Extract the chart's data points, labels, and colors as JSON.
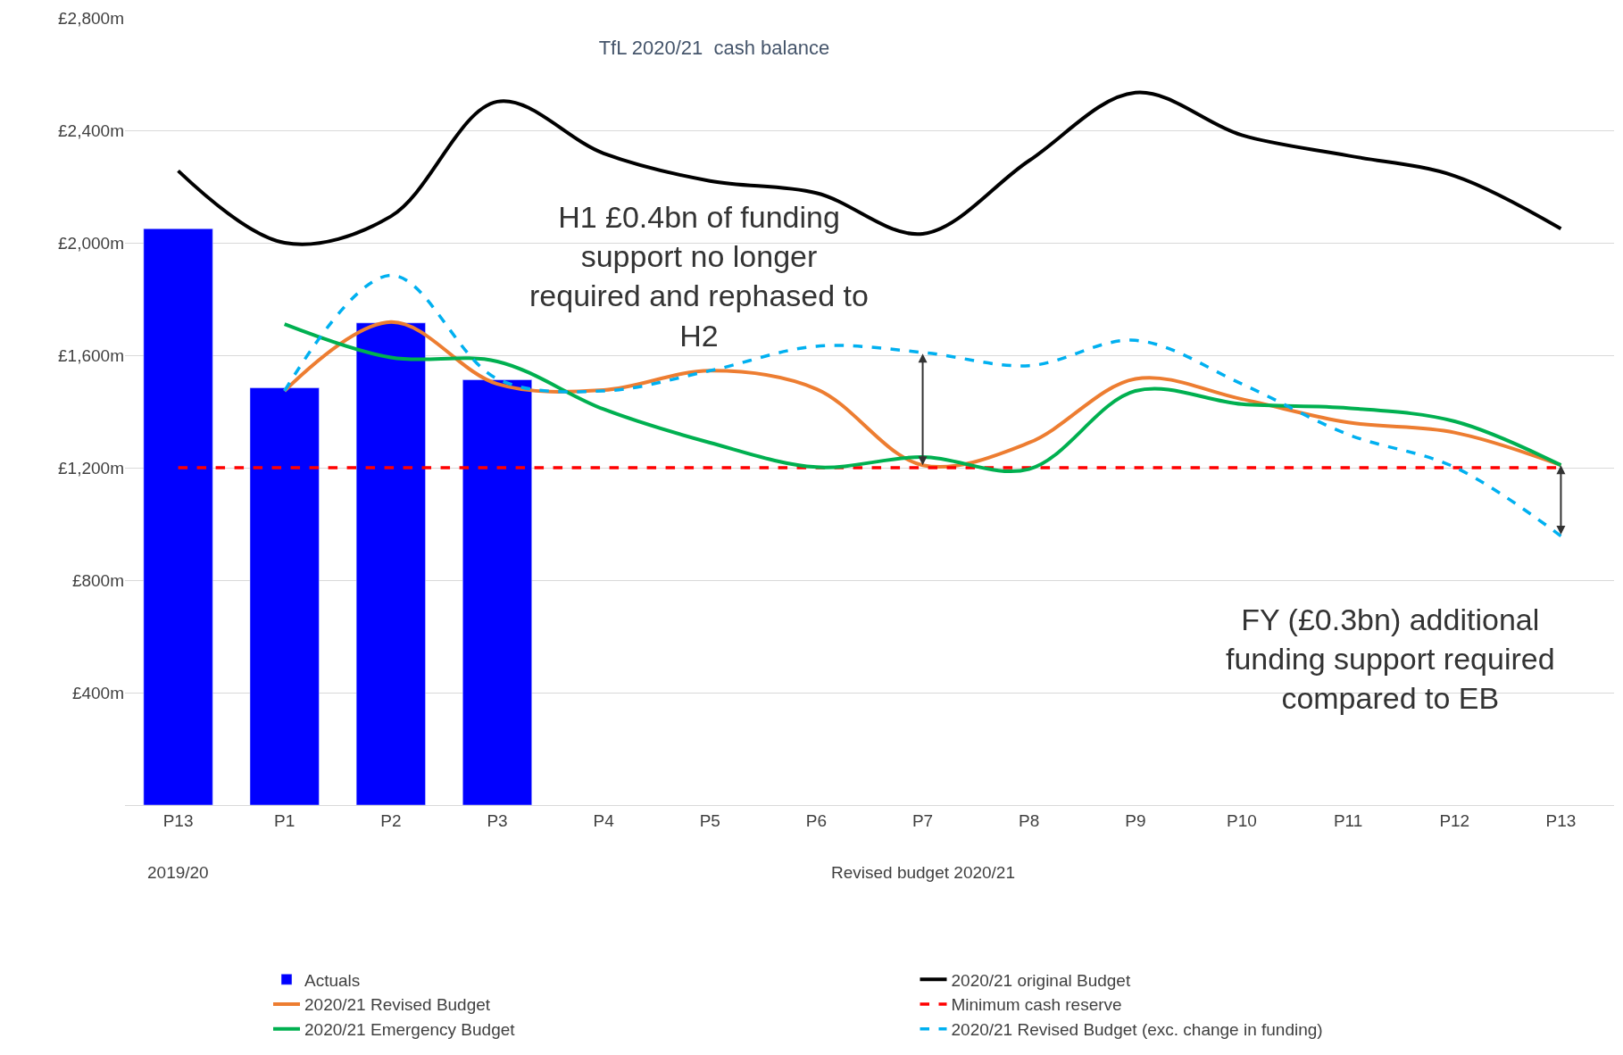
{
  "chart_data": {
    "type": "line",
    "title": "TfL 2020/21  cash balance",
    "categories": [
      "P13",
      "P1",
      "P2",
      "P3",
      "P4",
      "P5",
      "P6",
      "P7",
      "P8",
      "P9",
      "P10",
      "P11",
      "P12",
      "P13"
    ],
    "series": [
      {
        "name": "Actuals",
        "type": "bar",
        "color": "#0000ff",
        "values": [
          2050,
          1484,
          1715,
          1513,
          null,
          null,
          null,
          null,
          null,
          null,
          null,
          null,
          null,
          null
        ]
      },
      {
        "name": "2020/21 original Budget",
        "color": "#000000",
        "line_style": "solid",
        "values": [
          2256,
          2000,
          2094,
          2502,
          2318,
          2220,
          2177,
          2032,
          2292,
          2534,
          2383,
          2310,
          2238,
          2050
        ]
      },
      {
        "name": "2020/21 Revised Budget",
        "color": "#ed7d31",
        "line_style": "solid",
        "values": [
          null,
          1473,
          1718,
          1498,
          1476,
          1545,
          1480,
          1209,
          1289,
          1516,
          1444,
          1361,
          1325,
          1209
        ]
      },
      {
        "name": "Minimum cash reserve",
        "color": "#ff0000",
        "line_style": "dashed",
        "values": [
          1200,
          1200,
          1200,
          1200,
          1200,
          1200,
          1200,
          1200,
          1200,
          1200,
          1200,
          1200,
          1200,
          1200
        ]
      },
      {
        "name": "2020/21 Emergency Budget",
        "color": "#00b050",
        "line_style": "solid",
        "values": [
          null,
          1711,
          1592,
          1578,
          1408,
          1289,
          1202,
          1238,
          1195,
          1473,
          1426,
          1412,
          1365,
          1209
        ]
      },
      {
        "name": "2020/21 Revised Budget (exc. change in funding)",
        "color": "#00b0f0",
        "line_style": "dashed",
        "values": [
          null,
          1473,
          1884,
          1516,
          1473,
          1545,
          1632,
          1610,
          1563,
          1653,
          1498,
          1318,
          1202,
          957
        ]
      }
    ],
    "ylim": [
      0,
      2800
    ],
    "yticks": [
      {
        "value": 400,
        "label": "£400m"
      },
      {
        "value": 800,
        "label": "£800m"
      },
      {
        "value": 1200,
        "label": "£1,200m"
      },
      {
        "value": 1600,
        "label": "£1,600m"
      },
      {
        "value": 2000,
        "label": "£2,000m"
      },
      {
        "value": 2400,
        "label": "£2,400m"
      },
      {
        "value": 2800,
        "label": "£2,800m"
      }
    ],
    "grid": "y",
    "legend": "bottom",
    "marker": "none",
    "annotations": [
      "H1 £0.4bn of funding support no longer required and rephased to H2",
      "FY (£0.3bn) additional funding support required compared to EB",
      "2019/20",
      "Revised budget 2020/21"
    ]
  }
}
